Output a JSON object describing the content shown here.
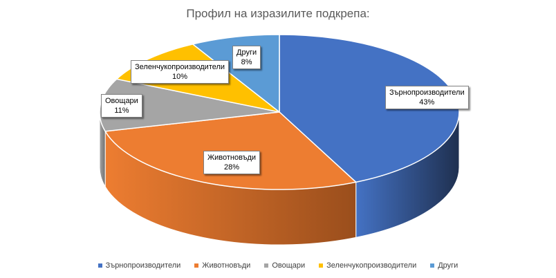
{
  "chart_data": {
    "type": "pie",
    "title": "Профил на изразилите подкрепа:",
    "slices": [
      {
        "label": "Зърнопроизводители",
        "value": 43,
        "pct_label": "43%",
        "color": "#4472C4",
        "side_color": "#1F3050"
      },
      {
        "label": "Животновъди",
        "value": 28,
        "pct_label": "28%",
        "color": "#ED7D31",
        "side_color": "#9A4E1C"
      },
      {
        "label": "Овощари",
        "value": 11,
        "pct_label": "11%",
        "color": "#A5A5A5",
        "side_color": "#6E6E6E"
      },
      {
        "label": "Зеленчукопроизводители",
        "value": 10,
        "pct_label": "10%",
        "color": "#FFC000",
        "side_color": "#A67C00"
      },
      {
        "label": "Други",
        "value": 8,
        "pct_label": "8%",
        "color": "#5B9BD5",
        "side_color": "#3A6791"
      }
    ],
    "legend_position": "bottom",
    "style": "3d-pie"
  }
}
